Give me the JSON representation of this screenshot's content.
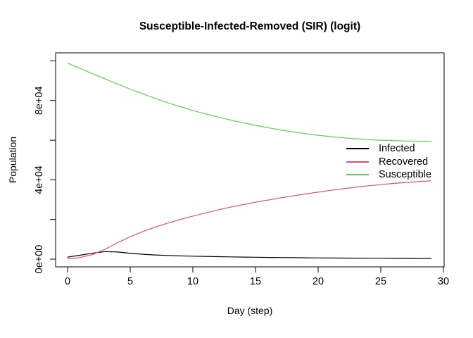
{
  "chart_data": {
    "type": "line",
    "title": "Susceptible-Infected-Removed (SIR) (logit)",
    "xlabel": "Day (step)",
    "ylabel": "Population",
    "xlim": [
      0,
      30
    ],
    "ylim": [
      0,
      100000
    ],
    "grid": false,
    "legend_position": "right-middle",
    "x_ticks": [
      0,
      5,
      10,
      15,
      20,
      25,
      30
    ],
    "y_ticks": [
      {
        "value": 0,
        "label": "0e+00"
      },
      {
        "value": 20000,
        "label": ""
      },
      {
        "value": 40000,
        "label": "4e+04"
      },
      {
        "value": 60000,
        "label": ""
      },
      {
        "value": 80000,
        "label": "8e+04"
      },
      {
        "value": 100000,
        "label": ""
      }
    ],
    "x": [
      0,
      1,
      2,
      3,
      4,
      5,
      6,
      7,
      8,
      9,
      10,
      11,
      12,
      13,
      14,
      15,
      16,
      17,
      18,
      19,
      20,
      21,
      22,
      23,
      24,
      25,
      26,
      27,
      28,
      29
    ],
    "series": [
      {
        "name": "Infected",
        "color": "#000000",
        "values": [
          1000,
          2000,
          3000,
          3800,
          3600,
          3000,
          2450,
          2100,
          1850,
          1650,
          1500,
          1370,
          1250,
          1140,
          1040,
          950,
          870,
          800,
          730,
          670,
          620,
          570,
          520,
          480,
          440,
          410,
          380,
          350,
          330,
          310
        ]
      },
      {
        "name": "Recovered",
        "color": "#DF536B",
        "values": [
          100,
          800,
          2300,
          5000,
          8300,
          11300,
          13900,
          16200,
          18200,
          20000,
          21700,
          23300,
          24800,
          26200,
          27500,
          28700,
          29800,
          30900,
          31900,
          32900,
          33800,
          34700,
          35500,
          36300,
          37000,
          37600,
          38200,
          38700,
          39100,
          39500
        ]
      },
      {
        "name": "Susceptible",
        "color": "#61D04F",
        "values": [
          98900,
          96200,
          93500,
          90900,
          88300,
          85800,
          83400,
          81100,
          78900,
          76900,
          75000,
          73300,
          71700,
          70200,
          68800,
          67500,
          66300,
          65200,
          64200,
          63300,
          62500,
          61800,
          61200,
          60700,
          60300,
          60000,
          59800,
          59600,
          59500,
          59400
        ]
      }
    ]
  },
  "legend": {
    "items": [
      {
        "label": "Infected",
        "color": "#000000"
      },
      {
        "label": "Recovered",
        "color": "#DF536B"
      },
      {
        "label": "Susceptible",
        "color": "#61D04F"
      }
    ]
  },
  "colors": {
    "axis": "#000000",
    "background": "#ffffff"
  }
}
